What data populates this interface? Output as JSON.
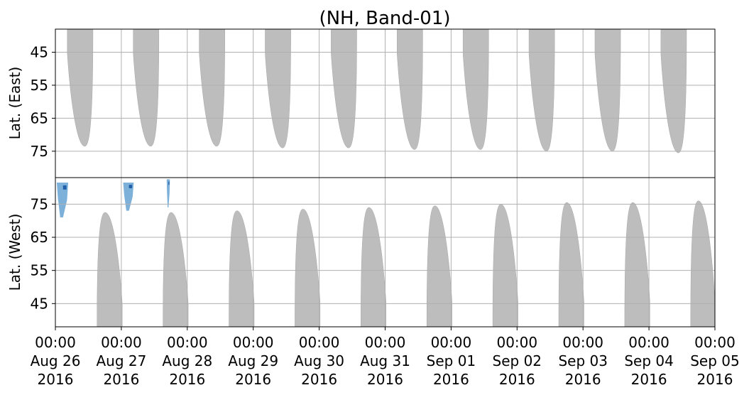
{
  "chart_data": {
    "type": "heatmap",
    "title": "(NH, Band-01)",
    "x_ticks": [
      {
        "date": "2016-08-26",
        "label": [
          "00:00",
          "Aug 26",
          "2016"
        ]
      },
      {
        "date": "2016-08-27",
        "label": [
          "00:00",
          "Aug 27",
          "2016"
        ]
      },
      {
        "date": "2016-08-28",
        "label": [
          "00:00",
          "Aug 28",
          "2016"
        ]
      },
      {
        "date": "2016-08-29",
        "label": [
          "00:00",
          "Aug 29",
          "2016"
        ]
      },
      {
        "date": "2016-08-30",
        "label": [
          "00:00",
          "Aug 30",
          "2016"
        ]
      },
      {
        "date": "2016-08-31",
        "label": [
          "00:00",
          "Aug 31",
          "2016"
        ]
      },
      {
        "date": "2016-09-01",
        "label": [
          "00:00",
          "Sep 01",
          "2016"
        ]
      },
      {
        "date": "2016-09-02",
        "label": [
          "00:00",
          "Sep 02",
          "2016"
        ]
      },
      {
        "date": "2016-09-03",
        "label": [
          "00:00",
          "Sep 03",
          "2016"
        ]
      },
      {
        "date": "2016-09-04",
        "label": [
          "00:00",
          "Sep 04",
          "2016"
        ]
      },
      {
        "date": "2016-09-05",
        "label": [
          "00:00",
          "Sep 05",
          "2016"
        ]
      }
    ],
    "xlim": [
      "2016-08-26 00:00",
      "2016-09-05 00:00"
    ],
    "grid": true,
    "colors": {
      "coverage": "#bdbdbd",
      "light": "#6fa8d6",
      "mid": "#3d85c6",
      "dark": "#1f5ea8",
      "grid": "#b0b0b0"
    },
    "panels": [
      {
        "name": "east",
        "ylabel": "Lat. (East)",
        "yticks": [
          45,
          55,
          65,
          75
        ],
        "ylim": [
          38,
          83
        ],
        "inverted": true,
        "coverage": [
          {
            "start": "2016-08-26 04:20",
            "end": "2016-08-26 13:40",
            "lat_min": 38,
            "lat_max": 73.5
          },
          {
            "start": "2016-08-27 04:20",
            "end": "2016-08-27 13:40",
            "lat_min": 38,
            "lat_max": 73.5
          },
          {
            "start": "2016-08-28 04:20",
            "end": "2016-08-28 13:40",
            "lat_min": 38,
            "lat_max": 73.5
          },
          {
            "start": "2016-08-29 04:20",
            "end": "2016-08-29 13:40",
            "lat_min": 38,
            "lat_max": 74.0
          },
          {
            "start": "2016-08-30 04:20",
            "end": "2016-08-30 13:40",
            "lat_min": 38,
            "lat_max": 74.0
          },
          {
            "start": "2016-08-31 04:20",
            "end": "2016-08-31 13:40",
            "lat_min": 38,
            "lat_max": 74.5
          },
          {
            "start": "2016-09-01 04:20",
            "end": "2016-09-01 13:40",
            "lat_min": 38,
            "lat_max": 74.5
          },
          {
            "start": "2016-09-02 04:20",
            "end": "2016-09-02 13:40",
            "lat_min": 38,
            "lat_max": 75.0
          },
          {
            "start": "2016-09-03 04:20",
            "end": "2016-09-03 13:40",
            "lat_min": 38,
            "lat_max": 75.0
          },
          {
            "start": "2016-09-04 04:20",
            "end": "2016-09-04 13:40",
            "lat_min": 38,
            "lat_max": 75.5
          }
        ]
      },
      {
        "name": "west",
        "ylabel": "Lat. (West)",
        "yticks": [
          45,
          55,
          65,
          75
        ],
        "ylim": [
          38,
          83
        ],
        "inverted": false,
        "coverage": [
          {
            "start": "2016-08-26 15:10",
            "end": "2016-08-27 00:20",
            "lat_min": 38,
            "lat_max": 72.5
          },
          {
            "start": "2016-08-27 15:10",
            "end": "2016-08-28 00:20",
            "lat_min": 38,
            "lat_max": 72.5
          },
          {
            "start": "2016-08-28 15:10",
            "end": "2016-08-29 00:20",
            "lat_min": 38,
            "lat_max": 73.0
          },
          {
            "start": "2016-08-29 15:10",
            "end": "2016-08-30 00:20",
            "lat_min": 38,
            "lat_max": 73.5
          },
          {
            "start": "2016-08-30 15:10",
            "end": "2016-08-31 00:20",
            "lat_min": 38,
            "lat_max": 74.0
          },
          {
            "start": "2016-08-31 15:10",
            "end": "2016-09-01 00:20",
            "lat_min": 38,
            "lat_max": 74.5
          },
          {
            "start": "2016-09-01 15:10",
            "end": "2016-09-02 00:20",
            "lat_min": 38,
            "lat_max": 75.0
          },
          {
            "start": "2016-09-02 15:10",
            "end": "2016-09-03 00:20",
            "lat_min": 38,
            "lat_max": 75.5
          },
          {
            "start": "2016-09-03 15:10",
            "end": "2016-09-04 00:20",
            "lat_min": 38,
            "lat_max": 75.5
          },
          {
            "start": "2016-09-04 15:10",
            "end": "2016-09-05 00:20",
            "lat_min": 38,
            "lat_max": 76.0
          }
        ],
        "detections": [
          {
            "start": "2016-08-26 00:30",
            "end": "2016-08-26 04:40",
            "lat_min": 71,
            "lat_max": 81.5
          },
          {
            "start": "2016-08-27 00:40",
            "end": "2016-08-27 04:30",
            "lat_min": 73,
            "lat_max": 81.5
          },
          {
            "start": "2016-08-27 16:30",
            "end": "2016-08-27 17:40",
            "lat_min": 74,
            "lat_max": 82.5
          }
        ]
      }
    ]
  }
}
